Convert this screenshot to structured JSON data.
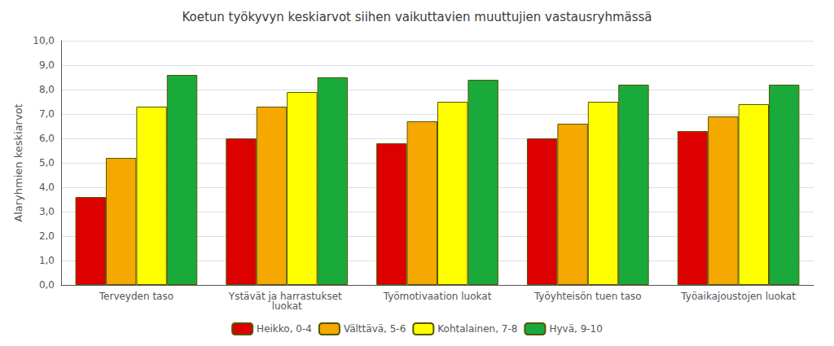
{
  "chart_data": {
    "type": "bar",
    "title": "Koetun työkyvyn keskiarvot siihen vaikuttavien muuttujien vastausryhmässä",
    "ylabel": "Alaryhmien keskiarvot",
    "categories": [
      "Terveyden taso",
      "Ystävät ja harrastukset luokat",
      "Työmotivaation luokat",
      "Työyhteisön tuen taso",
      "Työaikajoustojen luokat"
    ],
    "series": [
      {
        "name": "Heikko, 0-4",
        "color": "#dd0000",
        "values": [
          3.6,
          6.0,
          5.8,
          6.0,
          6.3
        ]
      },
      {
        "name": "Välttävä, 5-6",
        "color": "#f5a800",
        "values": [
          5.2,
          7.3,
          6.7,
          6.6,
          6.9
        ]
      },
      {
        "name": "Kohtalainen, 7-8",
        "color": "#ffff00",
        "values": [
          7.3,
          7.9,
          7.5,
          7.5,
          7.4
        ]
      },
      {
        "name": "Hyvä, 9-10",
        "color": "#1aaa3c",
        "values": [
          8.6,
          8.5,
          8.4,
          8.2,
          8.2
        ]
      }
    ],
    "ylim": [
      0,
      10.0
    ],
    "yticks": [
      {
        "value": 0.0,
        "label": "0,0"
      },
      {
        "value": 1.0,
        "label": "1,0"
      },
      {
        "value": 2.0,
        "label": "2,0"
      },
      {
        "value": 3.0,
        "label": "3,0"
      },
      {
        "value": 4.0,
        "label": "4,0"
      },
      {
        "value": 5.0,
        "label": "5,0"
      },
      {
        "value": 6.0,
        "label": "6,0"
      },
      {
        "value": 7.0,
        "label": "7,0"
      },
      {
        "value": 8.0,
        "label": "8,0"
      },
      {
        "value": 9.0,
        "label": "9,0"
      },
      {
        "value": 10.0,
        "label": "10,0"
      }
    ],
    "grid": true,
    "legend": "bottom"
  }
}
